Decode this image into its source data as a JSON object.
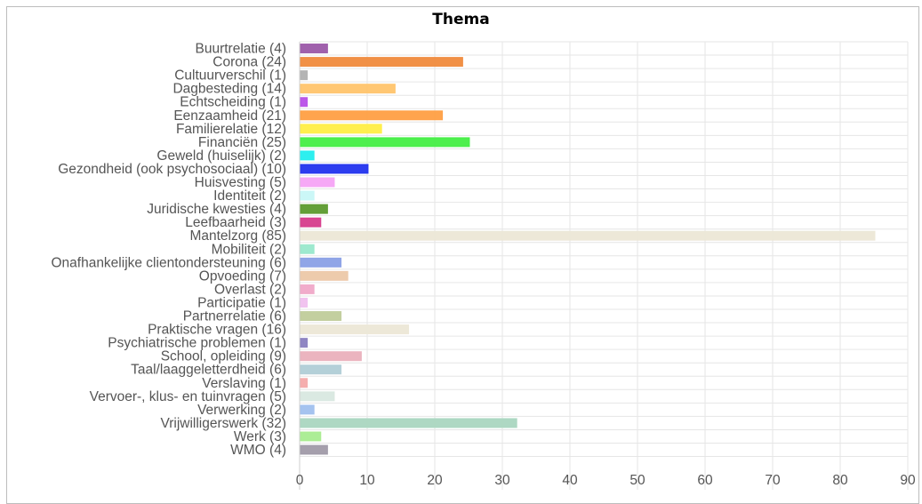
{
  "chart_data": {
    "type": "bar",
    "orientation": "horizontal",
    "title": "Thema",
    "xlabel": "",
    "ylabel": "",
    "xlim": [
      0,
      90
    ],
    "xticks": [
      0,
      10,
      20,
      30,
      40,
      50,
      60,
      70,
      80,
      90
    ],
    "grid": true,
    "categories": [
      "Buurtrelatie (4)",
      "Corona (24)",
      "Cultuurverschil (1)",
      "Dagbesteding (14)",
      "Echtscheiding (1)",
      "Eenzaamheid (21)",
      "Familierelatie (12)",
      "Financiën (25)",
      "Geweld (huiselijk) (2)",
      "Gezondheid (ook psychosociaal) (10)",
      "Huisvesting (5)",
      "Identiteit (2)",
      "Juridische kwesties (4)",
      "Leefbaarheid (3)",
      "Mantelzorg (85)",
      "Mobiliteit (2)",
      "Onafhankelijke clientondersteuning (6)",
      "Opvoeding (7)",
      "Overlast (2)",
      "Participatie (1)",
      "Partnerrelatie (6)",
      "Praktische vragen (16)",
      "Psychiatrische problemen (1)",
      "School, opleiding (9)",
      "Taal/laaggeletterdheid (6)",
      "Verslaving (1)",
      "Vervoer-, klus- en tuinvragen (5)",
      "Verwerking (2)",
      "Vrijwilligerswerk (32)",
      "Werk (3)",
      "WMO (4)"
    ],
    "values": [
      4,
      24,
      1,
      14,
      1,
      21,
      12,
      25,
      2,
      10,
      5,
      2,
      4,
      3,
      85,
      2,
      6,
      7,
      2,
      1,
      6,
      16,
      1,
      9,
      6,
      1,
      5,
      2,
      32,
      3,
      4
    ],
    "colors": [
      "#9b59a8",
      "#f08a3c",
      "#b0b0b0",
      "#ffc46b",
      "#b84fe8",
      "#ff9f43",
      "#ffee44",
      "#44ee44",
      "#22eeee",
      "#2233ee",
      "#f5a3f5",
      "#c8f7f7",
      "#5c9a2e",
      "#d63c8c",
      "#ece7d6",
      "#99e8cc",
      "#8aa0e6",
      "#ecc8a8",
      "#f0a8c8",
      "#f0c0ee",
      "#c0cc9a",
      "#ece7d6",
      "#8a80c0",
      "#eab0bc",
      "#b0cdd6",
      "#f4aaaa",
      "#d8e8e0",
      "#a0c0ee",
      "#aad6c0",
      "#a8ec90",
      "#a09aa8"
    ]
  }
}
